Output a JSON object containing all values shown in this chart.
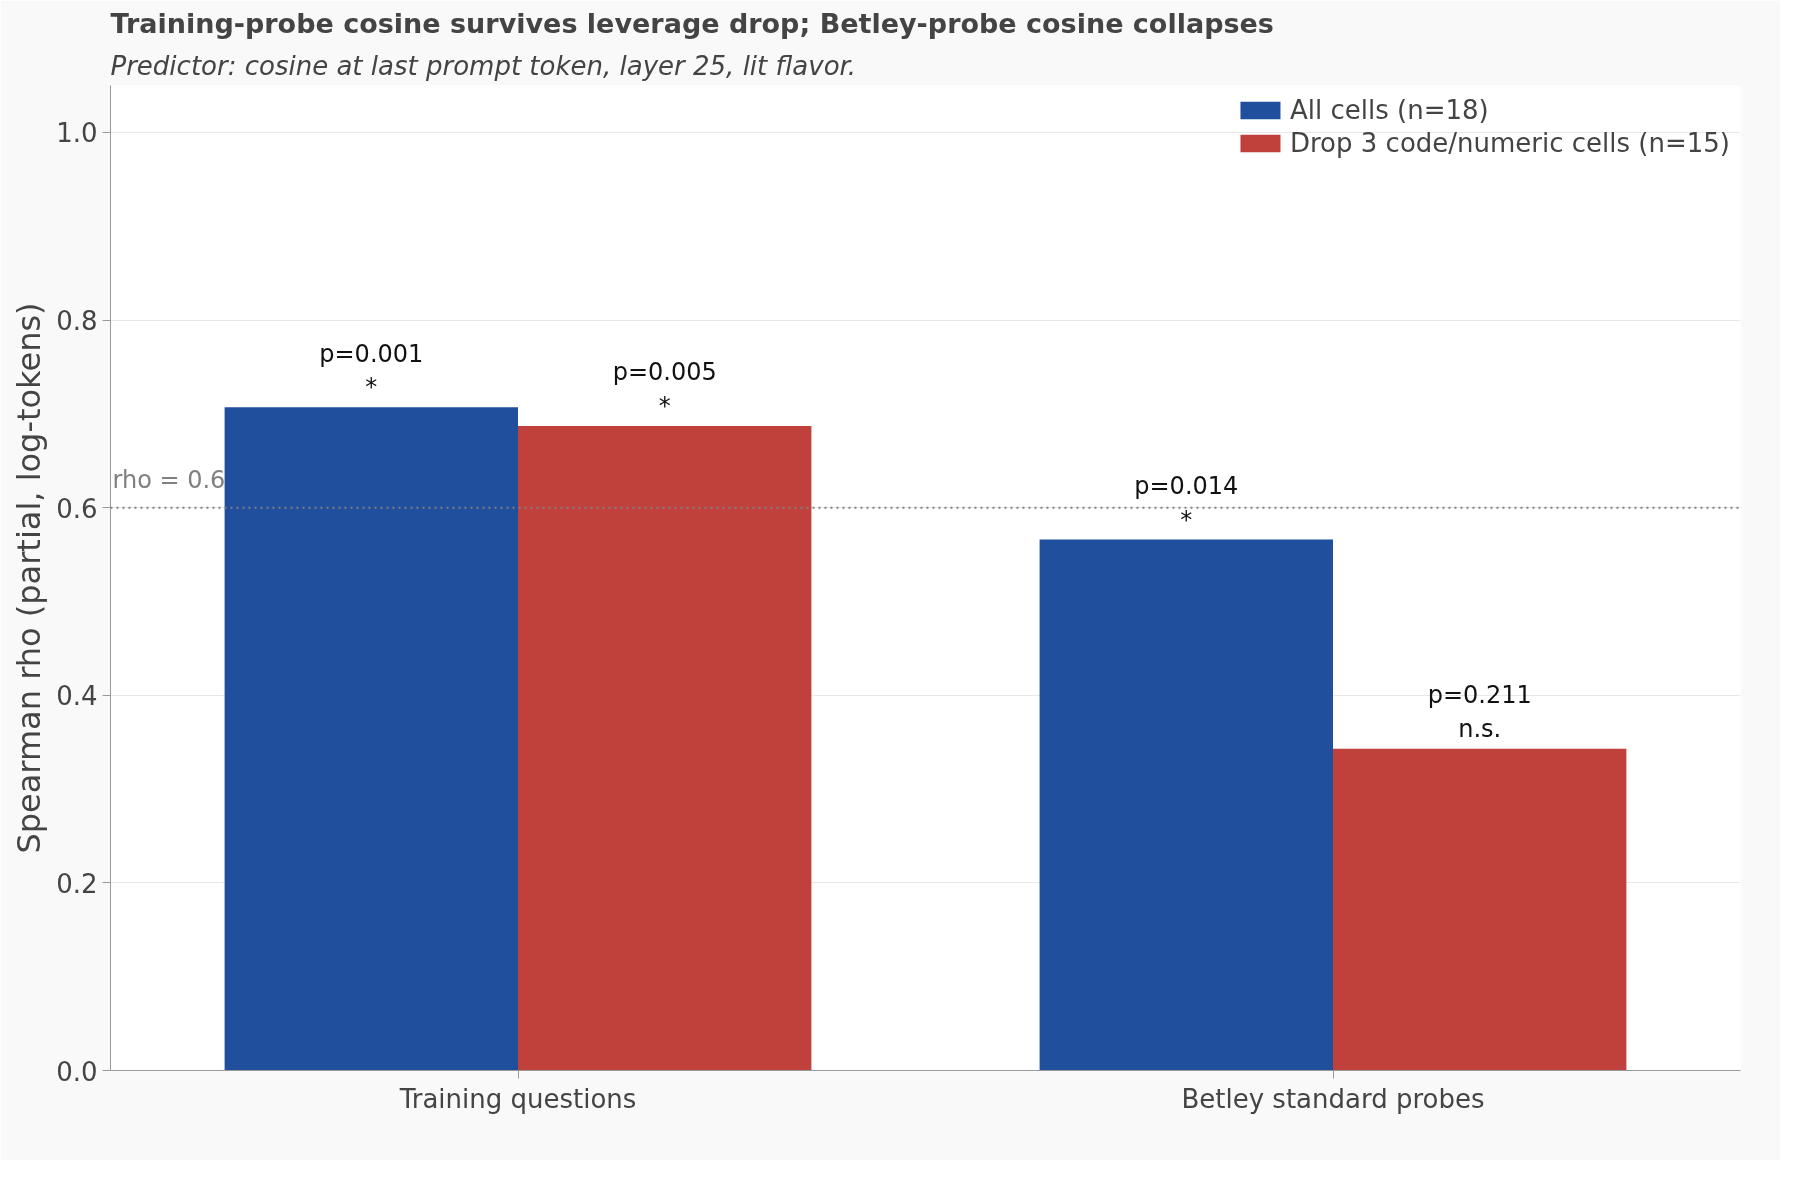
{
  "chart_data": {
    "type": "bar",
    "title": "Training-probe cosine survives leverage drop; Betley-probe cosine collapses",
    "subtitle": "Predictor: cosine at last prompt token, layer 25, lit flavor.",
    "ylabel": "Spearman rho (partial, log-tokens)",
    "categories": [
      "Training questions",
      "Betley standard probes"
    ],
    "series": [
      {
        "name": "All cells (n=18)",
        "color": "#1f4f9d",
        "values": [
          0.707,
          0.566
        ]
      },
      {
        "name": "Drop 3 code/numeric cells (n=15)",
        "color": "#c0413c",
        "values": [
          0.687,
          0.343
        ]
      }
    ],
    "annotations": [
      "p=0.001\n*",
      "p=0.014\n*",
      "p=0.005\n*",
      "p=0.211\nn.s."
    ],
    "ylim": [
      0,
      1.05
    ],
    "yticks": [
      {
        "value": 0,
        "label": "0.0"
      },
      {
        "value": 0.2,
        "label": "0.2"
      },
      {
        "value": 0.4,
        "label": "0.4"
      },
      {
        "value": 0.6,
        "label": "0.6"
      },
      {
        "value": 0.8,
        "label": "0.8"
      },
      {
        "value": 1.0,
        "label": "1.0"
      }
    ],
    "ref_lines": [
      {
        "axis": "y",
        "value": 0.6,
        "label": "rho = 0.6",
        "color": "#808080",
        "line_style": "dotted"
      }
    ],
    "grid": "y",
    "legend": "top right"
  }
}
